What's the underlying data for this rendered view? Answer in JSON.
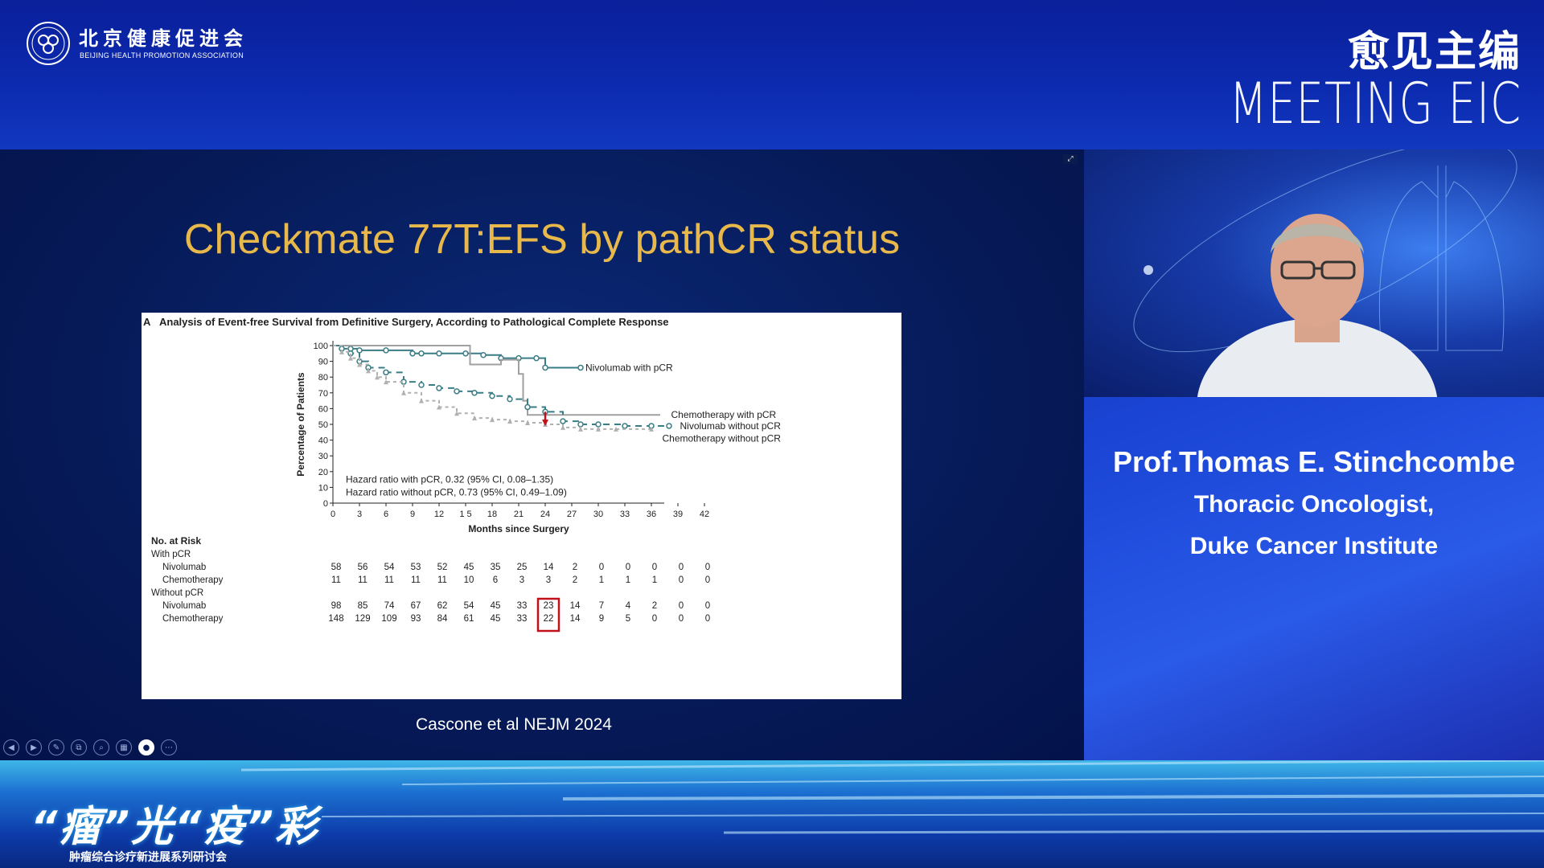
{
  "header": {
    "org_name_cn": "北京健康促进会",
    "org_name_en": "BEIJING HEALTH PROMOTION ASSOCIATION",
    "brand_cn": "愈见主编",
    "brand_en": "MEETING EIC"
  },
  "slide": {
    "title": "Checkmate 77T:EFS by pathCR status",
    "citation": "Cascone et al NEJM 2024",
    "toolbar": [
      "previous",
      "next",
      "pen",
      "copy",
      "zoom",
      "grid",
      "camera",
      "more"
    ]
  },
  "chart_data": {
    "type": "line",
    "panel_label": "A",
    "title": "Analysis of Event-free Survival from Definitive Surgery, According to Pathological Complete Response",
    "xlabel": "Months since Surgery",
    "ylabel": "Percentage of Patients",
    "xlim": [
      0,
      42
    ],
    "ylim": [
      0,
      100
    ],
    "xticks": [
      "0",
      "3",
      "6",
      "9",
      "12",
      "1 5",
      "18",
      "21",
      "24",
      "27",
      "30",
      "33",
      "36",
      "39",
      "42"
    ],
    "yticks": [
      0,
      10,
      20,
      30,
      40,
      50,
      60,
      70,
      80,
      90,
      100
    ],
    "series": [
      {
        "name": "Nivolumab with pCR",
        "color": "#3a7d86",
        "x": [
          0,
          2,
          3,
          6,
          9,
          10,
          12,
          15,
          17,
          19,
          21,
          23,
          24,
          28
        ],
        "y": [
          100,
          98,
          97,
          97,
          95,
          95,
          95,
          95,
          94,
          92,
          92,
          92,
          86,
          86
        ]
      },
      {
        "name": "Chemotherapy with pCR",
        "color": "#a0a0a0",
        "x": [
          0,
          3,
          9,
          15,
          15.5,
          18,
          19,
          20,
          21,
          21.5,
          22,
          28,
          37
        ],
        "y": [
          100,
          100,
          100,
          100,
          88,
          88,
          91,
          91,
          82,
          65,
          56,
          56,
          56
        ]
      },
      {
        "name": "Nivolumab without pCR",
        "color": "#3a7d86",
        "x": [
          0,
          1,
          2,
          3,
          4,
          6,
          8,
          10,
          12,
          14,
          16,
          18,
          20,
          22,
          24,
          26,
          28,
          30,
          33,
          36,
          38
        ],
        "y": [
          100,
          98,
          95,
          90,
          86,
          83,
          77,
          75,
          73,
          71,
          70,
          68,
          66,
          61,
          58,
          52,
          50,
          50,
          49,
          49,
          49
        ]
      },
      {
        "name": "Chemotherapy without pCR",
        "color": "#b0b0b0",
        "x": [
          0,
          1,
          2,
          3,
          4,
          5,
          6,
          8,
          10,
          12,
          14,
          16,
          18,
          20,
          22,
          24,
          26,
          28,
          30,
          32,
          36
        ],
        "y": [
          100,
          96,
          92,
          88,
          84,
          80,
          77,
          70,
          65,
          61,
          57,
          54,
          53,
          52,
          51,
          50,
          48,
          47,
          47,
          47,
          47
        ]
      }
    ],
    "annotations": [
      "Hazard ratio with pCR, 0.32 (95% CI, 0.08–1.35)",
      "Hazard ratio without pCR, 0.73 (95% CI, 0.49–1.09)"
    ],
    "risk_table": {
      "heading": "No. at Risk",
      "groups": [
        {
          "label": "With pCR",
          "rows": [
            {
              "label": "Nivolumab",
              "values": [
                "58",
                "56",
                "54",
                "53",
                "52",
                "45",
                "35",
                "25",
                "14",
                "2",
                "0",
                "0",
                "0",
                "0",
                "0"
              ]
            },
            {
              "label": "Chemotherapy",
              "values": [
                "11",
                "11",
                "11",
                "11",
                "11",
                "10",
                "6",
                "3",
                "3",
                "2",
                "1",
                "1",
                "1",
                "0",
                "0"
              ]
            }
          ]
        },
        {
          "label": "Without pCR",
          "rows": [
            {
              "label": "Nivolumab",
              "values": [
                "98",
                "85",
                "74",
                "67",
                "62",
                "54",
                "45",
                "33",
                "23",
                "14",
                "7",
                "4",
                "2",
                "0",
                "0"
              ]
            },
            {
              "label": "Chemotherapy",
              "values": [
                "148",
                "129",
                "109",
                "93",
                "84",
                "61",
                "45",
                "33",
                "22",
                "14",
                "9",
                "5",
                "0",
                "0",
                "0"
              ]
            }
          ]
        }
      ],
      "highlight_column": 8,
      "highlight_color": "#c0101a"
    }
  },
  "speaker": {
    "name": "Prof.Thomas E. Stinchcombe",
    "title": "Thoracic Oncologist,",
    "affiliation": "Duke Cancer Institute"
  },
  "footer": {
    "series_title": "“瘤”光“疫”彩",
    "series_subtitle": "肿瘤综合诊疗新进展系列研讨会"
  }
}
